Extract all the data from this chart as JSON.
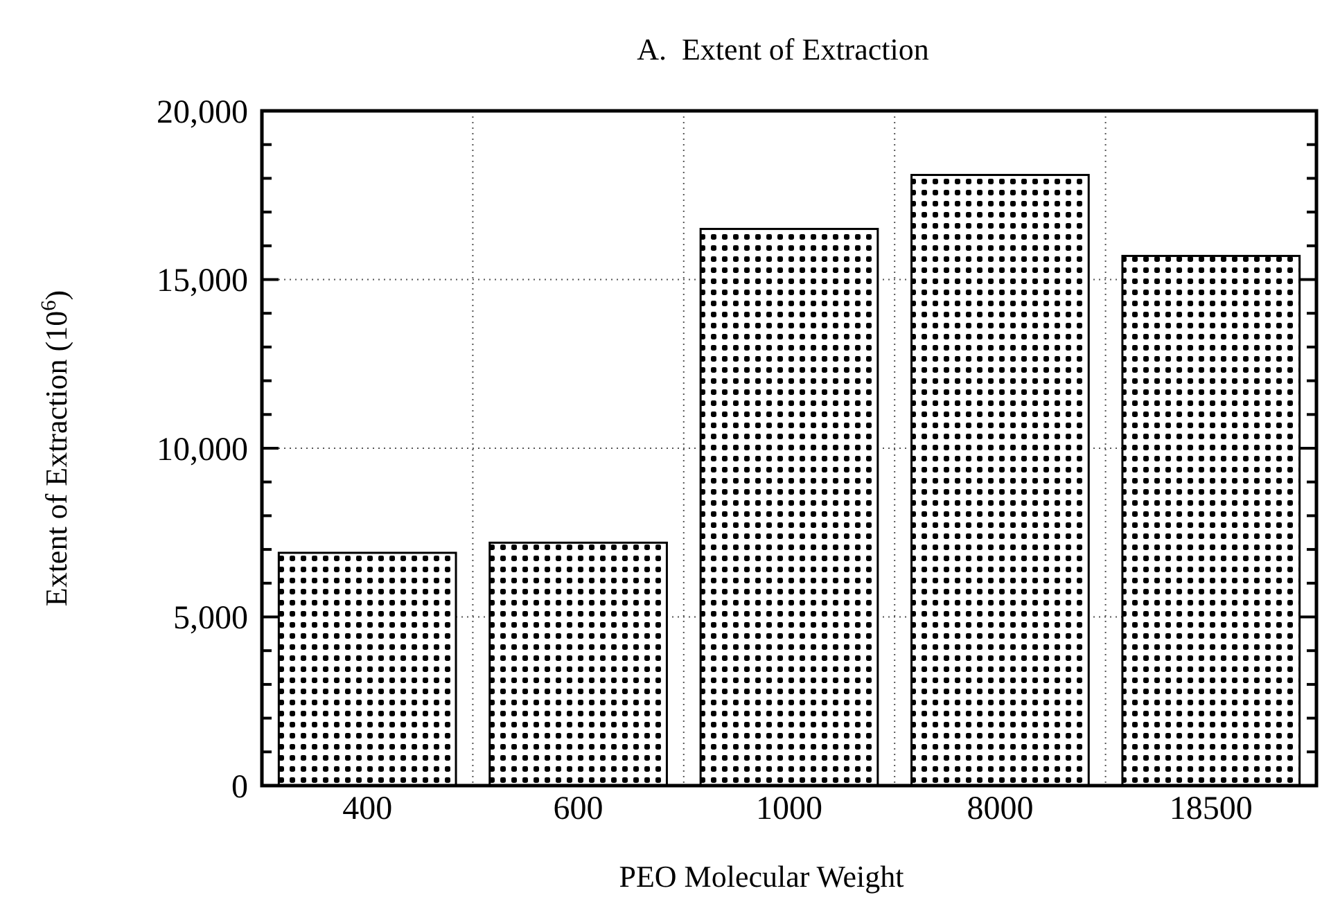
{
  "chart_data": {
    "type": "bar",
    "title": "A.  Extent of Extraction",
    "xlabel": "PEO Molecular Weight",
    "ylabel": "Extent of Extraction (10$^{6}$)",
    "categories": [
      "400",
      "600",
      "1000",
      "8000",
      "18500"
    ],
    "values": [
      6900,
      7200,
      16500,
      18100,
      15700
    ],
    "color": "#000000",
    "ylim": [
      0,
      20000
    ],
    "yticks": [
      {
        "value": 0,
        "label": "0"
      },
      {
        "value": 1000,
        "label": null
      },
      {
        "value": 2000,
        "label": null
      },
      {
        "value": 3000,
        "label": null
      },
      {
        "value": 4000,
        "label": null
      },
      {
        "value": 5000,
        "label": "5,000"
      },
      {
        "value": 6000,
        "label": null
      },
      {
        "value": 7000,
        "label": null
      },
      {
        "value": 8000,
        "label": null
      },
      {
        "value": 9000,
        "label": null
      },
      {
        "value": 10000,
        "label": "10,000"
      },
      {
        "value": 11000,
        "label": null
      },
      {
        "value": 12000,
        "label": null
      },
      {
        "value": 13000,
        "label": null
      },
      {
        "value": 14000,
        "label": null
      },
      {
        "value": 15000,
        "label": "15,000"
      },
      {
        "value": 16000,
        "label": null
      },
      {
        "value": 17000,
        "label": null
      },
      {
        "value": 18000,
        "label": null
      },
      {
        "value": 19000,
        "label": null
      },
      {
        "value": 20000,
        "label": "20,000"
      }
    ],
    "grid": true
  }
}
